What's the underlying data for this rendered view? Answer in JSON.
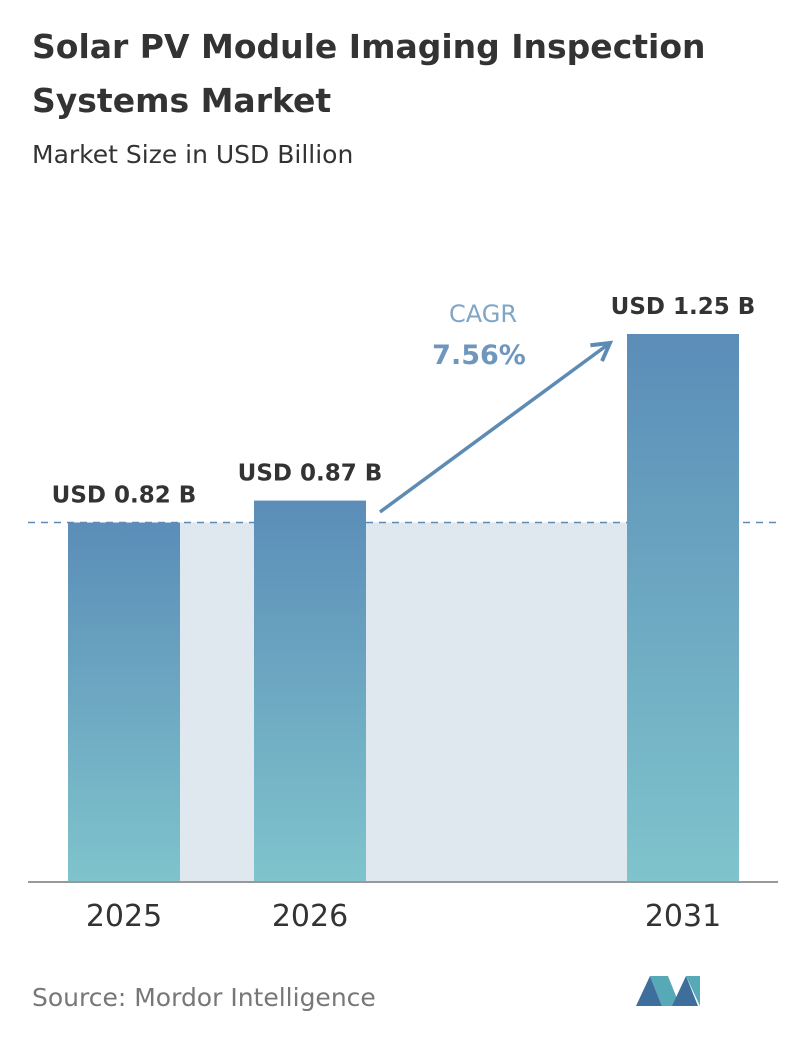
{
  "chart_data": {
    "type": "bar",
    "title_lines": [
      "Solar PV Module Imaging Inspection",
      "Systems Market"
    ],
    "subtitle": "Market Size in USD Billion",
    "categories": [
      "2025",
      "2026",
      "2031"
    ],
    "values": [
      0.82,
      0.87,
      1.25
    ],
    "value_labels": [
      "USD 0.82 B",
      "USD 0.87 B",
      "USD 1.25 B"
    ],
    "colors": [
      "#5b8db8",
      "#7fc4cc"
    ],
    "annotation": {
      "label": "CAGR",
      "value_text": "7.56%"
    },
    "source": "Source: Mordor Intelligence"
  }
}
